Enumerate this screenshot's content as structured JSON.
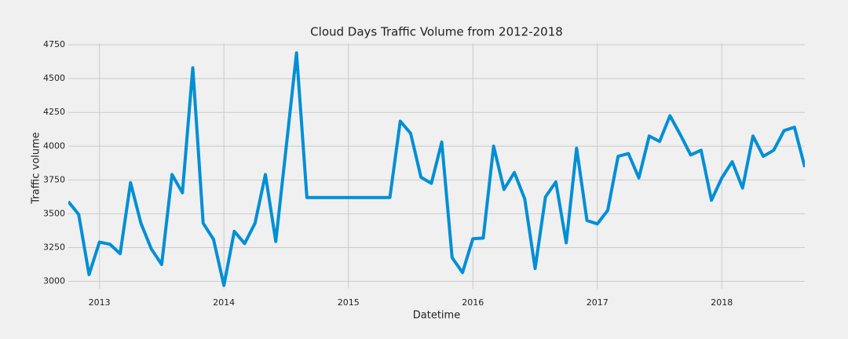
{
  "chart_data": {
    "type": "line",
    "title": "Cloud Days Traffic Volume from 2012-2018",
    "x_label": "Datetime",
    "y_label": "Traffic volume",
    "x": [
      "2012-10",
      "2012-11",
      "2012-12",
      "2013-01",
      "2013-02",
      "2013-03",
      "2013-04",
      "2013-05",
      "2013-06",
      "2013-07",
      "2013-08",
      "2013-09",
      "2013-10",
      "2013-11",
      "2013-12",
      "2014-01",
      "2014-02",
      "2014-03",
      "2014-04",
      "2014-05",
      "2014-06",
      "2014-07",
      "2014-08",
      "2014-09",
      "2014-10",
      "2014-11",
      "2014-12",
      "2015-01",
      "2015-02",
      "2015-03",
      "2015-04",
      "2015-05",
      "2015-06",
      "2015-07",
      "2015-08",
      "2015-09",
      "2015-10",
      "2015-11",
      "2015-12",
      "2016-01",
      "2016-02",
      "2016-03",
      "2016-04",
      "2016-05",
      "2016-06",
      "2016-07",
      "2016-08",
      "2016-09",
      "2016-10",
      "2016-11",
      "2016-12",
      "2017-01",
      "2017-02",
      "2017-03",
      "2017-04",
      "2017-05",
      "2017-06",
      "2017-07",
      "2017-08",
      "2017-09",
      "2017-10",
      "2017-11",
      "2017-12",
      "2018-01",
      "2018-02",
      "2018-03",
      "2018-04",
      "2018-05",
      "2018-06",
      "2018-07",
      "2018-08",
      "2018-09"
    ],
    "series": [
      {
        "name": "Traffic volume",
        "color": "#008fd5",
        "values": [
          3590,
          3495,
          3050,
          3290,
          3275,
          3205,
          3730,
          3430,
          3240,
          3125,
          3790,
          3655,
          4580,
          3430,
          3310,
          2970,
          3370,
          3280,
          3430,
          3790,
          3295,
          3990,
          4690,
          3620,
          3620,
          3620,
          3620,
          3620,
          3620,
          3620,
          3620,
          3620,
          4185,
          4095,
          3770,
          3725,
          4030,
          3175,
          3065,
          3315,
          3320,
          4000,
          3680,
          3805,
          3610,
          3095,
          3625,
          3735,
          3285,
          3985,
          3450,
          3425,
          3525,
          3925,
          3945,
          3765,
          4075,
          4035,
          4225,
          4085,
          3935,
          3970,
          3600,
          3765,
          3885,
          3690,
          4075,
          3925,
          3970,
          4115,
          4140,
          3845
        ]
      }
    ],
    "xlim": [
      "2012-10",
      "2018-09"
    ],
    "xticks": [
      "2013",
      "2014",
      "2015",
      "2016",
      "2017",
      "2018"
    ],
    "ylim": [
      2945,
      4762
    ],
    "yticks": [
      3000,
      3250,
      3500,
      3750,
      4000,
      4250,
      4500,
      4750
    ],
    "grid": true
  }
}
